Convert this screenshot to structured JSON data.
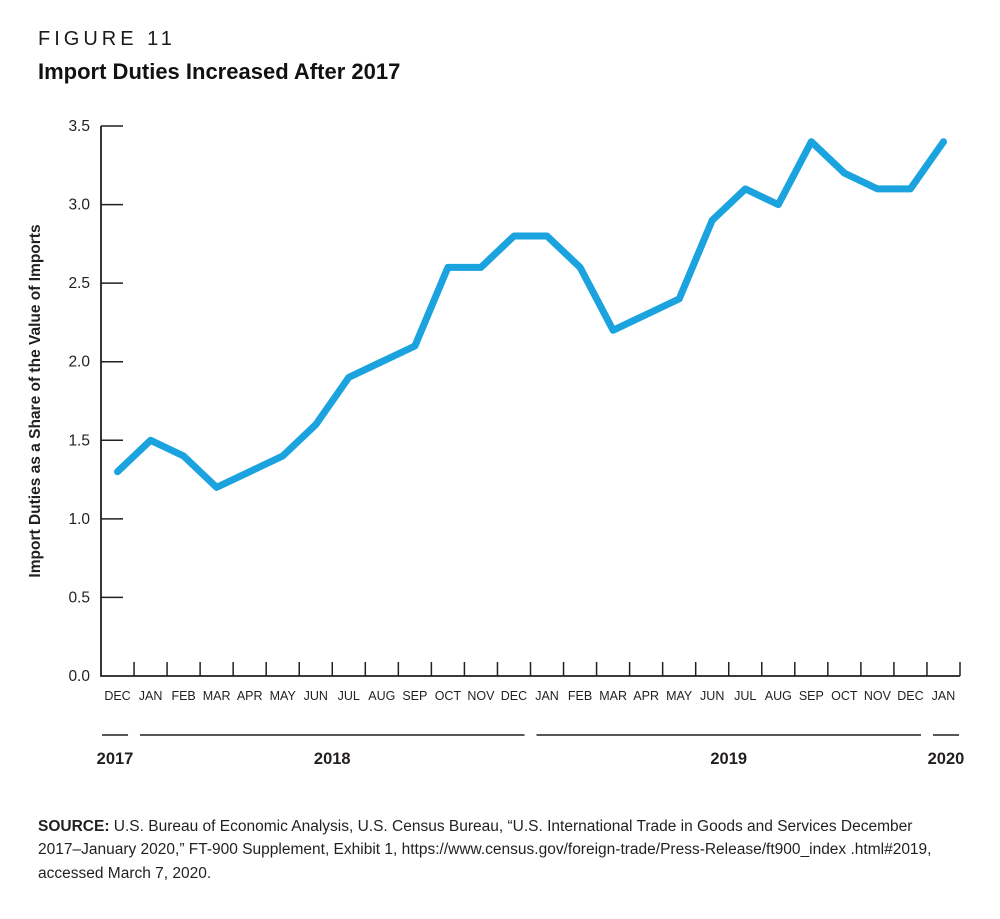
{
  "figure": {
    "label": "FIGURE 11",
    "title": "Import Duties Increased After 2017"
  },
  "chart_data": {
    "type": "line",
    "title": "Import Duties Increased After 2017",
    "ylabel": "Import Duties as a Share of the Value of Imports",
    "xlabel": "",
    "ylim": [
      0,
      3.5
    ],
    "ytick_step": 0.5,
    "ytick_labels": [
      "0.0",
      "0.5",
      "1.0",
      "1.5",
      "2.0",
      "2.5",
      "3.0",
      "3.5"
    ],
    "grid": false,
    "legend": "none",
    "categories": [
      "DEC",
      "JAN",
      "FEB",
      "MAR",
      "APR",
      "MAY",
      "JUN",
      "JUL",
      "AUG",
      "SEP",
      "OCT",
      "NOV",
      "DEC",
      "JAN",
      "FEB",
      "MAR",
      "APR",
      "MAY",
      "JUN",
      "JUL",
      "AUG",
      "SEP",
      "OCT",
      "NOV",
      "DEC",
      "JAN"
    ],
    "values": [
      1.3,
      1.5,
      1.4,
      1.2,
      1.3,
      1.4,
      1.6,
      1.9,
      2.0,
      2.1,
      2.6,
      2.6,
      2.8,
      2.8,
      2.6,
      2.2,
      2.3,
      2.4,
      2.9,
      3.1,
      3.0,
      3.4,
      3.2,
      3.1,
      3.1,
      3.4
    ],
    "year_groups": [
      {
        "label": "2017",
        "span": 1
      },
      {
        "label": "2018",
        "span": 12
      },
      {
        "label": "2019",
        "span": 12
      },
      {
        "label": "2020",
        "span": 1
      }
    ],
    "line_color": "#1aa3df",
    "axis_color": "#231f20"
  },
  "source": {
    "label": "SOURCE:",
    "text": " U.S. Bureau of Economic Analysis, U.S. Census Bureau, “U.S. International Trade in Goods and Services December 2017–January 2020,” FT-900 Supplement, Exhibit 1, https://www.census.gov/foreign-trade/Press-Release/ft900_index .html#2019, accessed March 7, 2020."
  }
}
